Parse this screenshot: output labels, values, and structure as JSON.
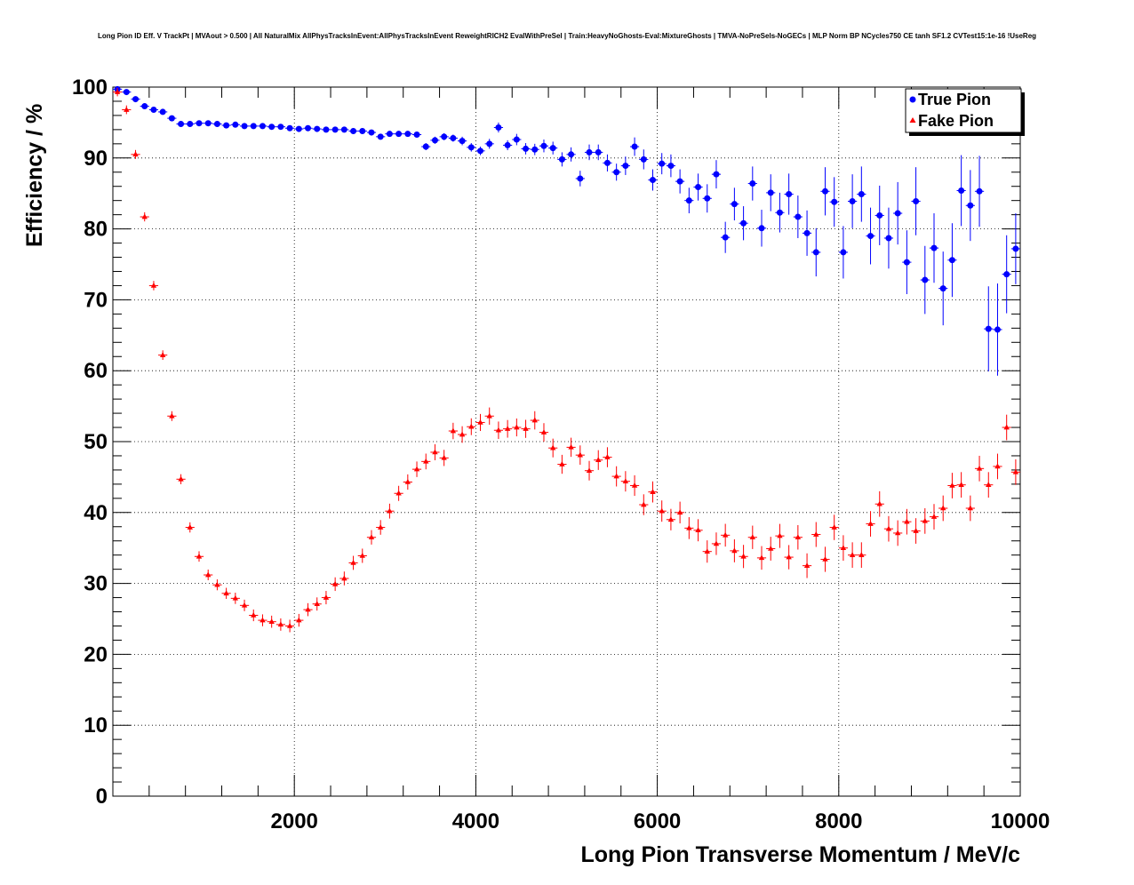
{
  "chart_data": {
    "type": "scatter",
    "title": "Long Pion ID Eff. V TrackPt | MVAout > 0.500 | All NaturalMix AllPhysTracksInEvent:AllPhysTracksInEvent ReweightRICH2 EvalWithPreSel | Train:HeavyNoGhosts-Eval:MixtureGhosts | TMVA-NoPreSels-NoGECs | MLP Norm BP NCycles750 CE tanh SF1.2 CVTest15:1e-16 !UseReg",
    "xlabel": "Long Pion Transverse Momentum / MeV/c",
    "ylabel": "Efficiency / %",
    "xlim": [
      0,
      10000
    ],
    "ylim": [
      0,
      100
    ],
    "x_ticks": [
      2000,
      4000,
      6000,
      8000,
      10000
    ],
    "y_ticks": [
      0,
      10,
      20,
      30,
      40,
      50,
      60,
      70,
      80,
      90,
      100
    ],
    "grid": true,
    "legend_position": "top-right",
    "series": [
      {
        "name": "True Pion",
        "color": "#0000ff",
        "marker": "circle",
        "x": [
          50,
          150,
          250,
          350,
          450,
          550,
          650,
          750,
          850,
          950,
          1050,
          1150,
          1250,
          1350,
          1450,
          1550,
          1650,
          1750,
          1850,
          1950,
          2050,
          2150,
          2250,
          2350,
          2450,
          2550,
          2650,
          2750,
          2850,
          2950,
          3050,
          3150,
          3250,
          3350,
          3450,
          3550,
          3650,
          3750,
          3850,
          3950,
          4050,
          4150,
          4250,
          4350,
          4450,
          4550,
          4650,
          4750,
          4850,
          4950,
          5050,
          5150,
          5250,
          5350,
          5450,
          5550,
          5650,
          5750,
          5850,
          5950,
          6050,
          6150,
          6250,
          6350,
          6450,
          6550,
          6650,
          6750,
          6850,
          6950,
          7050,
          7150,
          7250,
          7350,
          7450,
          7550,
          7650,
          7750,
          7850,
          7950,
          8050,
          8150,
          8250,
          8350,
          8450,
          8550,
          8650,
          8750,
          8850,
          8950,
          9050,
          9150,
          9250,
          9350,
          9450,
          9550,
          9650,
          9750,
          9850,
          9950
        ],
        "y": [
          99.7,
          99.3,
          98.3,
          97.3,
          96.8,
          96.5,
          95.6,
          94.8,
          94.8,
          94.9,
          94.9,
          94.8,
          94.6,
          94.7,
          94.5,
          94.5,
          94.5,
          94.4,
          94.4,
          94.2,
          94.1,
          94.2,
          94.1,
          94.0,
          94.0,
          94.0,
          93.8,
          93.8,
          93.6,
          93.0,
          93.4,
          93.4,
          93.4,
          93.3,
          91.6,
          92.5,
          93.0,
          92.8,
          92.4,
          91.5,
          91.0,
          92.0,
          94.3,
          91.8,
          92.6,
          91.3,
          91.2,
          91.7,
          91.4,
          89.8,
          90.5,
          87.1,
          90.8,
          90.8,
          89.3,
          88.0,
          88.9,
          91.6,
          89.8,
          86.9,
          89.2,
          88.9,
          86.7,
          84.0,
          85.9,
          84.3,
          87.7,
          78.8,
          83.5,
          80.8,
          86.4,
          80.1,
          85.1,
          82.3,
          84.9,
          81.7,
          79.4,
          76.7,
          85.3,
          83.8,
          76.7,
          83.9,
          84.9,
          79.0,
          81.9,
          78.7,
          82.2,
          75.3,
          83.9,
          72.8,
          77.3,
          71.6,
          75.6,
          85.4,
          83.3,
          85.3,
          65.9,
          65.8,
          73.6,
          77.2
        ],
        "yerr": [
          0.3,
          0.3,
          0.3,
          0.3,
          0.3,
          0.3,
          0.3,
          0.3,
          0.3,
          0.3,
          0.3,
          0.3,
          0.3,
          0.3,
          0.3,
          0.3,
          0.3,
          0.3,
          0.3,
          0.3,
          0.3,
          0.3,
          0.3,
          0.3,
          0.3,
          0.3,
          0.3,
          0.3,
          0.3,
          0.4,
          0.4,
          0.4,
          0.4,
          0.4,
          0.5,
          0.5,
          0.5,
          0.5,
          0.6,
          0.6,
          0.6,
          0.7,
          0.7,
          0.7,
          0.8,
          0.8,
          0.8,
          0.9,
          0.9,
          1.0,
          1.0,
          1.1,
          1.1,
          1.1,
          1.2,
          1.2,
          1.3,
          1.3,
          1.4,
          1.5,
          1.5,
          1.6,
          1.7,
          1.8,
          1.9,
          2.0,
          2.0,
          2.2,
          2.3,
          2.4,
          2.4,
          2.6,
          2.6,
          2.8,
          2.9,
          3.0,
          3.2,
          3.4,
          3.4,
          3.5,
          3.7,
          3.8,
          3.9,
          4.0,
          4.2,
          4.3,
          4.4,
          4.5,
          4.8,
          4.8,
          4.9,
          5.2,
          5.2,
          5.0,
          5.0,
          5.0,
          6.0,
          6.5,
          5.5,
          5.0
        ]
      },
      {
        "name": "Fake Pion",
        "color": "#ff0000",
        "marker": "triangle",
        "x": [
          50,
          150,
          250,
          350,
          450,
          550,
          650,
          750,
          850,
          950,
          1050,
          1150,
          1250,
          1350,
          1450,
          1550,
          1650,
          1750,
          1850,
          1950,
          2050,
          2150,
          2250,
          2350,
          2450,
          2550,
          2650,
          2750,
          2850,
          2950,
          3050,
          3150,
          3250,
          3350,
          3450,
          3550,
          3650,
          3750,
          3850,
          3950,
          4050,
          4150,
          4250,
          4350,
          4450,
          4550,
          4650,
          4750,
          4850,
          4950,
          5050,
          5150,
          5250,
          5350,
          5450,
          5550,
          5650,
          5750,
          5850,
          5950,
          6050,
          6150,
          6250,
          6350,
          6450,
          6550,
          6650,
          6750,
          6850,
          6950,
          7050,
          7150,
          7250,
          7350,
          7450,
          7550,
          7650,
          7750,
          7850,
          7950,
          8050,
          8150,
          8250,
          8350,
          8450,
          8550,
          8650,
          8750,
          8850,
          8950,
          9050,
          9150,
          9250,
          9350,
          9450,
          9550,
          9650,
          9750,
          9850,
          9950
        ],
        "y": [
          99.3,
          96.8,
          90.5,
          81.7,
          72.0,
          62.2,
          53.6,
          44.7,
          37.9,
          33.8,
          31.2,
          29.8,
          28.6,
          27.9,
          26.9,
          25.5,
          24.8,
          24.6,
          24.2,
          24.0,
          24.8,
          26.3,
          27.1,
          28.0,
          29.9,
          30.7,
          32.9,
          33.9,
          36.5,
          37.9,
          40.2,
          42.7,
          44.3,
          46.1,
          47.2,
          48.5,
          47.7,
          51.5,
          51.0,
          52.1,
          52.7,
          53.6,
          51.6,
          51.8,
          52.0,
          51.8,
          53.0,
          51.3,
          49.1,
          46.8,
          49.2,
          48.1,
          45.9,
          47.4,
          47.8,
          45.1,
          44.4,
          43.8,
          41.1,
          42.9,
          40.2,
          39.0,
          40.0,
          37.8,
          37.5,
          34.5,
          35.6,
          36.8,
          34.6,
          33.8,
          36.5,
          33.6,
          34.9,
          36.7,
          33.7,
          36.5,
          32.5,
          36.9,
          33.4,
          37.9,
          35.0,
          34.0,
          34.0,
          38.4,
          41.2,
          37.7,
          37.1,
          38.7,
          37.4,
          38.8,
          39.4,
          40.6,
          43.8,
          43.9,
          40.6,
          46.2,
          43.9,
          46.5,
          52.0,
          45.7
        ]
      }
    ]
  }
}
